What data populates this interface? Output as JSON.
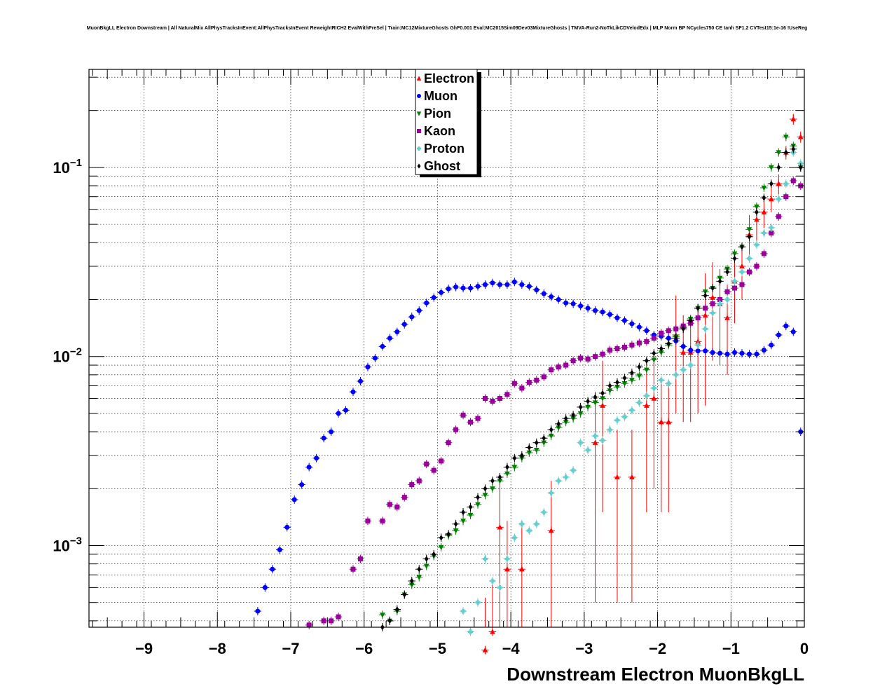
{
  "chart_data": {
    "type": "scatter",
    "title": "MuonBkgLL Electron Downstream | All NaturalMix AllPhysTracksInEvent:AllPhysTracksInEvent ReweightRICH2 EvalWithPreSel | Train:MC12MixtureGhosts GhF0.001 Eval:MC2015Sim09Dev03MixtureGhosts | TMVA-Run2-NoTkLikCDVelodEdx | MLP Norm BP NCycles750 CE tanh SF1.2 CVTest15:1e-16 !UseReg",
    "xlabel": "Downstream Electron MuonBkgLL",
    "ylabel": "",
    "xlim": [
      -9.75,
      0
    ],
    "ylim": [
      0.00037,
      0.33
    ],
    "log_y": true,
    "grid": true,
    "legend_position": "top-center",
    "x_ticks": [
      -9,
      -8,
      -7,
      -6,
      -5,
      -4,
      -3,
      -2,
      -1,
      0
    ],
    "x_tick_labels": [
      "−9",
      "−8",
      "−7",
      "−6",
      "−5",
      "−4",
      "−3",
      "−2",
      "−1",
      "0"
    ],
    "y_ticks": [
      0.001,
      0.01,
      0.1
    ],
    "y_tick_labels": [
      {
        "base": "10",
        "exp": "−3"
      },
      {
        "base": "10",
        "exp": "−2"
      },
      {
        "base": "10",
        "exp": "−1"
      }
    ],
    "series": [
      {
        "name": "Electron",
        "color": "#ff0000",
        "marker": "triangle-up",
        "x": [
          -0.05,
          -0.15,
          -0.25,
          -0.35,
          -0.45,
          -0.55,
          -0.65,
          -0.75,
          -0.85,
          -0.95,
          -1.05,
          -1.15,
          -1.25,
          -1.35,
          -1.45,
          -1.55,
          -1.65,
          -1.75,
          -1.85,
          -1.95,
          -2.05,
          -2.15,
          -2.35,
          -2.55,
          -2.75,
          -2.85,
          -3.45,
          -3.85,
          -4.05,
          -4.15,
          -4.25,
          -4.35
        ],
        "y": [
          0.145,
          0.18,
          0.12,
          0.082,
          0.068,
          0.058,
          0.053,
          0.044,
          0.03,
          0.025,
          0.016,
          0.019,
          0.0205,
          0.0165,
          0.012,
          0.0105,
          0.0105,
          0.013,
          0.0045,
          0.0045,
          0.006,
          0.0055,
          0.0023,
          0.0023,
          0.0055,
          0.0035,
          0.0012,
          0.00075,
          0.00075,
          0.00125,
          0.00035,
          0.00028
        ],
        "err": [
          0.01,
          0.012,
          0.01,
          0.01,
          0.01,
          0.01,
          0.012,
          0.012,
          0.01,
          0.01,
          0.008,
          0.01,
          0.011,
          0.011,
          0.007,
          0.006,
          0.006,
          0.008,
          0.003,
          0.003,
          0.004,
          0.004,
          0.0018,
          0.0018,
          0.004,
          0.003,
          0.001,
          0.0006,
          0.0006,
          0.001,
          0.0003,
          0.00025
        ]
      },
      {
        "name": "Muon",
        "color": "#0000ff",
        "marker": "circle",
        "x": [
          -0.05,
          -0.15,
          -0.25,
          -0.35,
          -0.45,
          -0.55,
          -0.65,
          -0.75,
          -0.85,
          -0.95,
          -1.05,
          -1.15,
          -1.25,
          -1.35,
          -1.45,
          -1.55,
          -1.65,
          -1.75,
          -1.85,
          -1.95,
          -2.05,
          -2.15,
          -2.25,
          -2.35,
          -2.45,
          -2.55,
          -2.65,
          -2.75,
          -2.85,
          -2.95,
          -3.05,
          -3.15,
          -3.25,
          -3.35,
          -3.45,
          -3.55,
          -3.65,
          -3.75,
          -3.85,
          -3.95,
          -4.05,
          -4.15,
          -4.25,
          -4.35,
          -4.45,
          -4.55,
          -4.65,
          -4.75,
          -4.85,
          -4.95,
          -5.05,
          -5.15,
          -5.25,
          -5.35,
          -5.45,
          -5.55,
          -5.65,
          -5.75,
          -5.85,
          -5.95,
          -6.05,
          -6.15,
          -6.25,
          -6.35,
          -6.45,
          -6.55,
          -6.65,
          -6.75,
          -6.85,
          -6.95,
          -7.05,
          -7.15,
          -7.25,
          -7.35,
          -7.45
        ],
        "y": [
          0.004,
          0.0135,
          0.0145,
          0.013,
          0.0115,
          0.0108,
          0.0103,
          0.0103,
          0.0104,
          0.0105,
          0.0103,
          0.0104,
          0.0105,
          0.0107,
          0.0107,
          0.0108,
          0.0113,
          0.0121,
          0.0125,
          0.0128,
          0.013,
          0.0137,
          0.0143,
          0.0149,
          0.0155,
          0.016,
          0.0167,
          0.0172,
          0.0175,
          0.018,
          0.0185,
          0.019,
          0.0192,
          0.02,
          0.0207,
          0.0215,
          0.0225,
          0.0235,
          0.024,
          0.0248,
          0.024,
          0.024,
          0.0245,
          0.024,
          0.0235,
          0.023,
          0.023,
          0.0233,
          0.0228,
          0.0218,
          0.0205,
          0.0192,
          0.0175,
          0.0162,
          0.0148,
          0.0135,
          0.0125,
          0.0113,
          0.0098,
          0.0088,
          0.0074,
          0.0065,
          0.0052,
          0.005,
          0.004,
          0.0037,
          0.0029,
          0.0026,
          0.0021,
          0.00175,
          0.00125,
          0.00095,
          0.00075,
          0.0006,
          0.00045
        ],
        "err": []
      },
      {
        "name": "Pion",
        "color": "#008000",
        "marker": "triangle-down",
        "x": [
          -0.05,
          -0.15,
          -0.25,
          -0.35,
          -0.45,
          -0.55,
          -0.65,
          -0.75,
          -0.85,
          -0.95,
          -1.05,
          -1.15,
          -1.25,
          -1.35,
          -1.45,
          -1.55,
          -1.65,
          -1.75,
          -1.85,
          -1.95,
          -2.05,
          -2.15,
          -2.25,
          -2.35,
          -2.45,
          -2.55,
          -2.65,
          -2.75,
          -2.85,
          -2.95,
          -3.05,
          -3.15,
          -3.25,
          -3.35,
          -3.45,
          -3.55,
          -3.65,
          -3.75,
          -3.85,
          -3.95,
          -4.05,
          -4.15,
          -4.25,
          -4.35,
          -4.45,
          -4.55,
          -4.65,
          -4.75,
          -4.85,
          -4.95,
          -5.05,
          -5.15,
          -5.25,
          -5.35,
          -5.45,
          -5.55,
          -5.65,
          -5.75
        ],
        "y": [
          0.1,
          0.13,
          0.145,
          0.12,
          0.1,
          0.078,
          0.062,
          0.047,
          0.038,
          0.035,
          0.029,
          0.026,
          0.023,
          0.022,
          0.018,
          0.0158,
          0.0142,
          0.0127,
          0.0115,
          0.0105,
          0.0096,
          0.0085,
          0.0079,
          0.0075,
          0.0072,
          0.0069,
          0.0066,
          0.006,
          0.0057,
          0.0054,
          0.005,
          0.0047,
          0.0045,
          0.0042,
          0.0038,
          0.0035,
          0.0032,
          0.0031,
          0.0029,
          0.0026,
          0.0024,
          0.0022,
          0.002,
          0.00185,
          0.00165,
          0.00145,
          0.00135,
          0.0012,
          0.00113,
          0.00098,
          0.00088,
          0.00078,
          0.00068,
          0.00062,
          0.00055,
          0.00045,
          0.0004,
          0.00043
        ],
        "err": []
      },
      {
        "name": "Kaon",
        "color": "#990099",
        "marker": "square",
        "x": [
          -0.05,
          -0.15,
          -0.25,
          -0.35,
          -0.45,
          -0.55,
          -0.65,
          -0.75,
          -0.85,
          -0.95,
          -1.05,
          -1.15,
          -1.25,
          -1.35,
          -1.45,
          -1.55,
          -1.65,
          -1.75,
          -1.85,
          -1.95,
          -2.05,
          -2.15,
          -2.25,
          -2.35,
          -2.45,
          -2.55,
          -2.65,
          -2.75,
          -2.85,
          -2.95,
          -3.05,
          -3.15,
          -3.25,
          -3.35,
          -3.45,
          -3.55,
          -3.65,
          -3.75,
          -3.85,
          -3.95,
          -4.05,
          -4.15,
          -4.25,
          -4.35,
          -4.45,
          -4.55,
          -4.65,
          -4.75,
          -4.85,
          -4.95,
          -5.05,
          -5.15,
          -5.25,
          -5.35,
          -5.45,
          -5.55,
          -5.65,
          -5.75,
          -5.95,
          -6.05,
          -6.15,
          -6.35,
          -6.45,
          -6.55,
          -6.75
        ],
        "y": [
          0.08,
          0.085,
          0.07,
          0.055,
          0.045,
          0.035,
          0.03,
          0.028,
          0.024,
          0.023,
          0.022,
          0.02,
          0.019,
          0.018,
          0.016,
          0.015,
          0.0145,
          0.014,
          0.0137,
          0.0133,
          0.0125,
          0.012,
          0.0118,
          0.0115,
          0.0112,
          0.011,
          0.0108,
          0.0103,
          0.01,
          0.0097,
          0.0098,
          0.0095,
          0.009,
          0.0088,
          0.0085,
          0.0078,
          0.0075,
          0.0073,
          0.0068,
          0.0072,
          0.0063,
          0.006,
          0.0058,
          0.006,
          0.0047,
          0.0045,
          0.0049,
          0.0041,
          0.0035,
          0.0028,
          0.0025,
          0.0027,
          0.0022,
          0.0021,
          0.0018,
          0.0016,
          0.00165,
          0.00135,
          0.00135,
          0.00085,
          0.00075,
          0.00042,
          0.0004,
          0.0004,
          0.00038
        ],
        "err": []
      },
      {
        "name": "Proton",
        "color": "#66cccc",
        "marker": "cross",
        "x": [
          -0.05,
          -0.15,
          -0.25,
          -0.35,
          -0.45,
          -0.55,
          -0.65,
          -0.75,
          -0.85,
          -0.95,
          -1.05,
          -1.15,
          -1.25,
          -1.35,
          -1.45,
          -1.55,
          -1.65,
          -1.75,
          -1.85,
          -1.95,
          -2.05,
          -2.15,
          -2.25,
          -2.35,
          -2.45,
          -2.55,
          -2.65,
          -2.75,
          -2.85,
          -2.95,
          -3.05,
          -3.15,
          -3.25,
          -3.35,
          -3.45,
          -3.55,
          -3.65,
          -3.75,
          -3.85,
          -3.95,
          -4.05,
          -4.15,
          -4.25,
          -4.35,
          -4.45,
          -4.55,
          -4.65
        ],
        "y": [
          0.105,
          0.12,
          0.082,
          0.068,
          0.048,
          0.045,
          0.039,
          0.033,
          0.028,
          0.025,
          0.02,
          0.019,
          0.017,
          0.014,
          0.0115,
          0.009,
          0.0085,
          0.008,
          0.0072,
          0.0075,
          0.0068,
          0.0062,
          0.0057,
          0.0052,
          0.0048,
          0.0046,
          0.0041,
          0.0036,
          0.0038,
          0.0032,
          0.0035,
          0.0025,
          0.0023,
          0.0022,
          0.0019,
          0.0015,
          0.0013,
          0.0012,
          0.0013,
          0.0011,
          0.00085,
          0.0006,
          0.00065,
          0.00085,
          0.0005,
          0.00035,
          0.00045
        ],
        "err": []
      },
      {
        "name": "Ghost",
        "color": "#000000",
        "marker": "diamond",
        "x": [
          -0.05,
          -0.15,
          -0.25,
          -0.35,
          -0.45,
          -0.55,
          -0.65,
          -0.75,
          -0.85,
          -0.95,
          -1.05,
          -1.15,
          -1.25,
          -1.35,
          -1.45,
          -1.55,
          -1.65,
          -1.75,
          -1.85,
          -1.95,
          -2.05,
          -2.15,
          -2.25,
          -2.35,
          -2.45,
          -2.55,
          -2.65,
          -2.75,
          -2.85,
          -2.95,
          -3.05,
          -3.15,
          -3.25,
          -3.35,
          -3.45,
          -3.55,
          -3.65,
          -3.75,
          -3.85,
          -3.95,
          -4.05,
          -4.15,
          -4.25,
          -4.35,
          -4.45,
          -4.55,
          -4.65,
          -4.75,
          -4.85,
          -4.95,
          -5.05,
          -5.15,
          -5.25,
          -5.35,
          -5.45,
          -5.55,
          -5.65,
          -5.75
        ],
        "y": [
          0.1,
          0.125,
          0.12,
          0.1,
          0.082,
          0.069,
          0.058,
          0.043,
          0.038,
          0.033,
          0.028,
          0.025,
          0.023,
          0.021,
          0.018,
          0.0155,
          0.014,
          0.0125,
          0.0117,
          0.011,
          0.0104,
          0.0095,
          0.0088,
          0.0082,
          0.0077,
          0.0073,
          0.007,
          0.0064,
          0.0061,
          0.0058,
          0.0054,
          0.0049,
          0.0047,
          0.0044,
          0.0041,
          0.0037,
          0.0035,
          0.0033,
          0.003,
          0.0029,
          0.0026,
          0.0023,
          0.0022,
          0.002,
          0.0018,
          0.0016,
          0.0015,
          0.0013,
          0.00115,
          0.0011,
          0.0009,
          0.00085,
          0.00075,
          0.00065,
          0.00055,
          0.00046,
          0.0004,
          0.00037
        ],
        "err": []
      }
    ]
  }
}
